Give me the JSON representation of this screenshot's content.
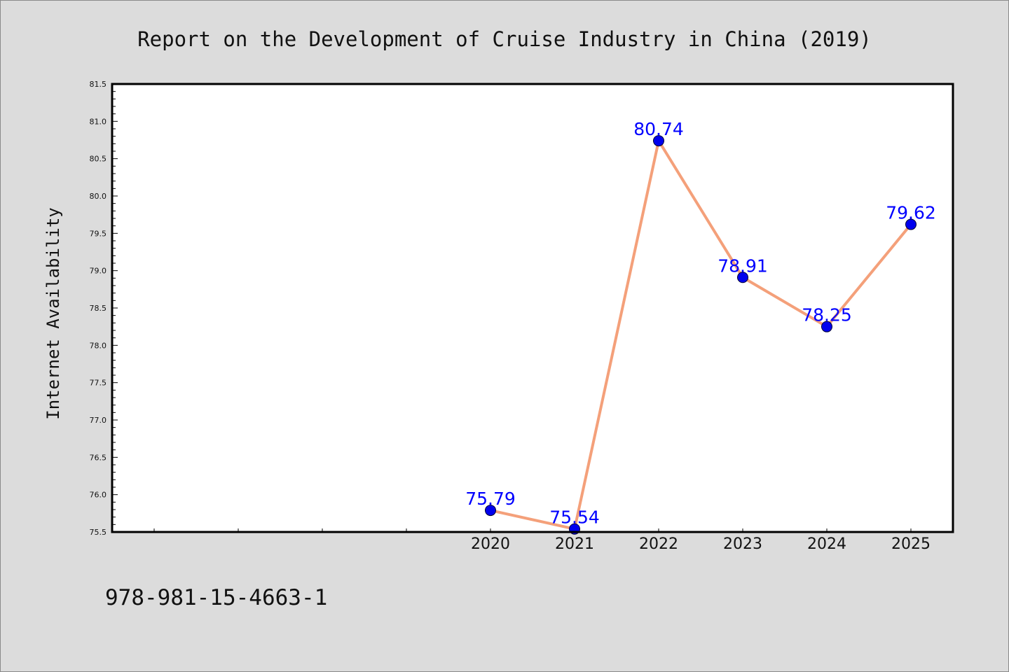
{
  "chart_data": {
    "type": "line",
    "title": "Report on the Development of Cruise Industry in China (2019)",
    "xlabel": "",
    "ylabel": "Internet Availability",
    "categories": [
      "2020",
      "2021",
      "2022",
      "2023",
      "2024",
      "2025"
    ],
    "x_extent": [
      2015.5,
      2025.5
    ],
    "ylim": [
      75.5,
      81.5
    ],
    "ytick_step": 0.5,
    "yminor_step": 0.1,
    "grid": false,
    "legend": "none",
    "series": [
      {
        "values": [
          75.79,
          75.54,
          80.74,
          78.91,
          78.25,
          79.62
        ],
        "labels": [
          "75.79",
          "75.54",
          "80.74",
          "78.91",
          "78.25",
          "79.62"
        ],
        "line_color": "#f4a07a",
        "marker_color": "#0000ee",
        "label_color": "#0000ff"
      }
    ]
  },
  "footer": {
    "text": "978-981-15-4663-1"
  },
  "colors": {
    "background": "#dcdcdc",
    "plot_background": "#ffffff",
    "axis": "#000000"
  }
}
